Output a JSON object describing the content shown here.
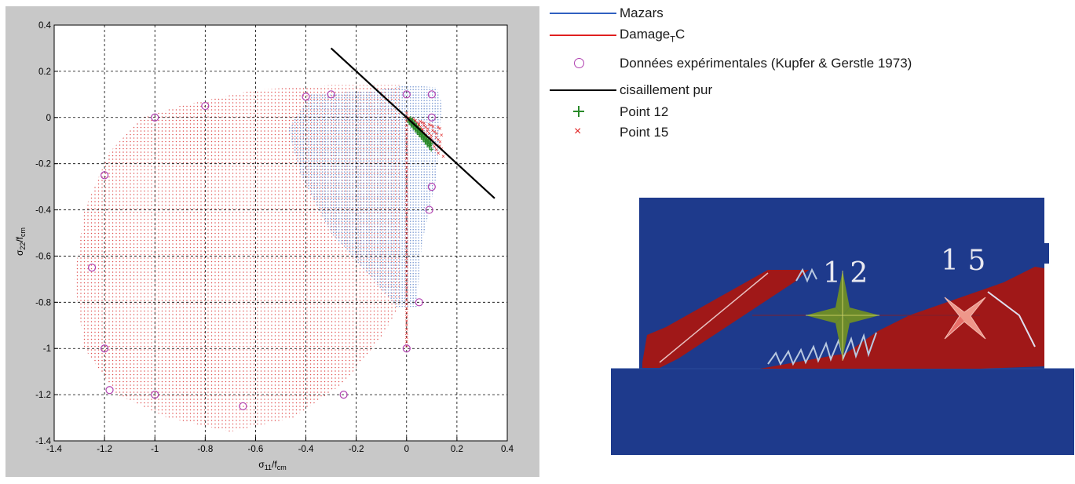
{
  "chart_data": {
    "type": "scatter",
    "xlabel": "σ11/fcm",
    "ylabel": "σ22/fcm",
    "xlim": [
      -1.4,
      0.4
    ],
    "ylim": [
      -1.4,
      0.4
    ],
    "x_ticks": [
      "-1.4",
      "-1.2",
      "-1",
      "-0.8",
      "-0.6",
      "-0.4",
      "-0.2",
      "0",
      "0.2",
      "0.4"
    ],
    "y_ticks": [
      "0.4",
      "0.2",
      "0",
      "-0.2",
      "-0.4",
      "-0.6",
      "-0.8",
      "-1",
      "-1.2",
      "-1.4"
    ],
    "grid": true,
    "legend_placement": "outside-right",
    "series": [
      {
        "name": "Mazars",
        "kind": "point-cloud",
        "color": "#6f8fc8"
      },
      {
        "name": "Damage",
        "name_sub": "T",
        "name_suffix": "C",
        "kind": "point-cloud",
        "color": "#e05050"
      },
      {
        "name": "Données expérimentales (Kupfer & Gerstle 1973)",
        "kind": "markers",
        "marker": "circle",
        "color": "#b040b0",
        "points": [
          [
            -1.25,
            -0.65
          ],
          [
            -1.2,
            -0.25
          ],
          [
            -1.2,
            -1.0
          ],
          [
            -1.18,
            -1.18
          ],
          [
            -1.0,
            0.0
          ],
          [
            -1.0,
            -1.2
          ],
          [
            -0.8,
            0.05
          ],
          [
            -0.65,
            -1.25
          ],
          [
            -0.4,
            0.09
          ],
          [
            -0.3,
            0.1
          ],
          [
            -0.25,
            -1.2
          ],
          [
            0.0,
            0.1
          ],
          [
            0.0,
            -1.0
          ],
          [
            0.05,
            -0.8
          ],
          [
            0.1,
            0.1
          ],
          [
            0.1,
            0.0
          ],
          [
            0.1,
            -0.3
          ],
          [
            0.09,
            -0.4
          ]
        ]
      },
      {
        "name": "cisaillement pur",
        "kind": "line",
        "color": "#000000",
        "points": [
          [
            -0.3,
            0.3
          ],
          [
            0.35,
            -0.35
          ]
        ]
      },
      {
        "name": "Point 12",
        "kind": "markers",
        "marker": "plus",
        "color": "#2a8a2a"
      },
      {
        "name": "Point 15",
        "kind": "markers",
        "marker": "x",
        "color": "#e02020"
      }
    ]
  },
  "simulation": {
    "label_12": "1 2",
    "label_15": "1 5",
    "colors": {
      "background": "#1e3a8c",
      "damage": "#a01818",
      "star_12": "#6b8a2a",
      "star_15": "#e8706a"
    }
  }
}
